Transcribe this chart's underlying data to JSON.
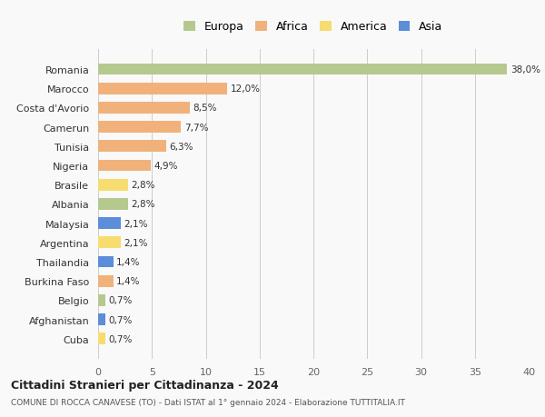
{
  "countries": [
    "Romania",
    "Marocco",
    "Costa d'Avorio",
    "Camerun",
    "Tunisia",
    "Nigeria",
    "Brasile",
    "Albania",
    "Malaysia",
    "Argentina",
    "Thailandia",
    "Burkina Faso",
    "Belgio",
    "Afghanistan",
    "Cuba"
  ],
  "values": [
    38.0,
    12.0,
    8.5,
    7.7,
    6.3,
    4.9,
    2.8,
    2.8,
    2.1,
    2.1,
    1.4,
    1.4,
    0.7,
    0.7,
    0.7
  ],
  "labels": [
    "38,0%",
    "12,0%",
    "8,5%",
    "7,7%",
    "6,3%",
    "4,9%",
    "2,8%",
    "2,8%",
    "2,1%",
    "2,1%",
    "1,4%",
    "1,4%",
    "0,7%",
    "0,7%",
    "0,7%"
  ],
  "continents": [
    "Europa",
    "Africa",
    "Africa",
    "Africa",
    "Africa",
    "Africa",
    "America",
    "Europa",
    "Asia",
    "America",
    "Asia",
    "Africa",
    "Europa",
    "Asia",
    "America"
  ],
  "continent_colors": {
    "Europa": "#b5c98e",
    "Africa": "#f0b27a",
    "America": "#f7dc6f",
    "Asia": "#5b8dd9"
  },
  "legend_order": [
    "Europa",
    "Africa",
    "America",
    "Asia"
  ],
  "title": "Cittadini Stranieri per Cittadinanza - 2024",
  "subtitle": "COMUNE DI ROCCA CANAVESE (TO) - Dati ISTAT al 1° gennaio 2024 - Elaborazione TUTTITALIA.IT",
  "xlim": [
    0,
    40
  ],
  "xticks": [
    0,
    5,
    10,
    15,
    20,
    25,
    30,
    35,
    40
  ],
  "bg_color": "#f9f9f9",
  "grid_color": "#cccccc"
}
